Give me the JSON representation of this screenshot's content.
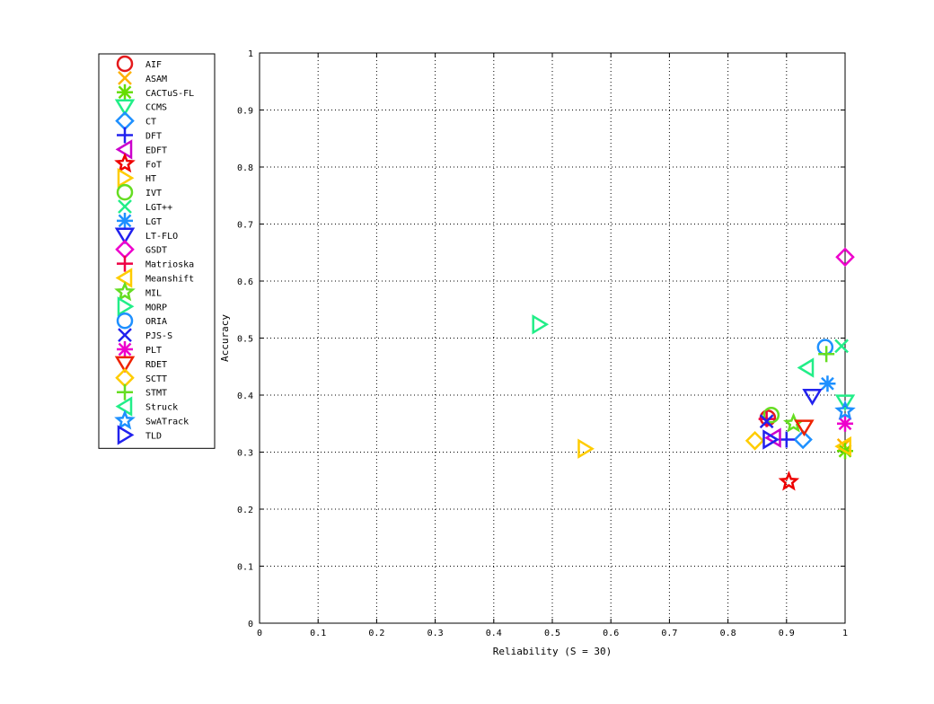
{
  "chart_data": {
    "type": "scatter",
    "xlabel": "Reliability (S = 30)",
    "ylabel": "Accuracy",
    "xlim": [
      0,
      1
    ],
    "ylim": [
      0,
      1
    ],
    "x_ticks": [
      "0",
      "0.1",
      "0.2",
      "0.3",
      "0.4",
      "0.5",
      "0.6",
      "0.7",
      "0.8",
      "0.9",
      "1"
    ],
    "y_ticks": [
      "0",
      "0.1",
      "0.2",
      "0.3",
      "0.4",
      "0.5",
      "0.6",
      "0.7",
      "0.8",
      "0.9",
      "1"
    ],
    "grid": true,
    "legend_position": "left-outside",
    "series": [
      {
        "name": "AIF",
        "marker": "circle",
        "color": "#e41a1c",
        "x": 0.868,
        "y": 0.36
      },
      {
        "name": "ASAM",
        "marker": "x",
        "color": "#ffb000",
        "x": 0.998,
        "y": 0.312
      },
      {
        "name": "CACTuS-FL",
        "marker": "star",
        "color": "#66dd00",
        "x": 1.0,
        "y": 0.302
      },
      {
        "name": "CCMS",
        "marker": "triangle-down",
        "color": "#22ee88",
        "x": 1.0,
        "y": 0.388
      },
      {
        "name": "CT",
        "marker": "diamond",
        "color": "#1e90ff",
        "x": 0.928,
        "y": 0.322
      },
      {
        "name": "DFT",
        "marker": "plus",
        "color": "#2222ee",
        "x": 0.9,
        "y": 0.322
      },
      {
        "name": "EDFT",
        "marker": "triangle-left",
        "color": "#cc00cc",
        "x": 0.878,
        "y": 0.325
      },
      {
        "name": "FoT",
        "marker": "pentagram",
        "color": "#ee0000",
        "x": 0.904,
        "y": 0.248
      },
      {
        "name": "HT",
        "marker": "triangle-right",
        "color": "#ffcc00",
        "x": 0.556,
        "y": 0.306
      },
      {
        "name": "IVT",
        "marker": "circle",
        "color": "#66dd22",
        "x": 0.874,
        "y": 0.365
      },
      {
        "name": "LGT++",
        "marker": "x",
        "color": "#22ee88",
        "x": 0.994,
        "y": 0.486
      },
      {
        "name": "LGT",
        "marker": "star",
        "color": "#1e90ff",
        "x": 0.97,
        "y": 0.42
      },
      {
        "name": "LT-FLO",
        "marker": "triangle-down",
        "color": "#2222ee",
        "x": 0.944,
        "y": 0.398
      },
      {
        "name": "GSDT",
        "marker": "diamond",
        "color": "#ee00cc",
        "x": 1.0,
        "y": 0.642
      },
      {
        "name": "Matrioska",
        "marker": "plus",
        "color": "#ee0044",
        "x": 0.866,
        "y": 0.358
      },
      {
        "name": "Meanshift",
        "marker": "triangle-left",
        "color": "#ffcc00",
        "x": 0.998,
        "y": 0.31
      },
      {
        "name": "MIL",
        "marker": "pentagram",
        "color": "#66dd22",
        "x": 0.912,
        "y": 0.35
      },
      {
        "name": "MORP",
        "marker": "triangle-right",
        "color": "#22ee88",
        "x": 0.478,
        "y": 0.524
      },
      {
        "name": "ORIA",
        "marker": "circle",
        "color": "#1e90ff",
        "x": 0.966,
        "y": 0.484
      },
      {
        "name": "PJS-S",
        "marker": "x",
        "color": "#2222ee",
        "x": 0.866,
        "y": 0.354
      },
      {
        "name": "PLT",
        "marker": "star",
        "color": "#ee00cc",
        "x": 1.0,
        "y": 0.35
      },
      {
        "name": "RDET",
        "marker": "triangle-down",
        "color": "#ee2200",
        "x": 0.93,
        "y": 0.344
      },
      {
        "name": "SCTT",
        "marker": "diamond",
        "color": "#ffcc00",
        "x": 0.846,
        "y": 0.32
      },
      {
        "name": "STMT",
        "marker": "plus",
        "color": "#66dd22",
        "x": 0.968,
        "y": 0.472
      },
      {
        "name": "Struck",
        "marker": "triangle-left",
        "color": "#22ee88",
        "x": 0.934,
        "y": 0.448
      },
      {
        "name": "SwATrack",
        "marker": "pentagram",
        "color": "#1e90ff",
        "x": 1.0,
        "y": 0.372
      },
      {
        "name": "TLD",
        "marker": "triangle-right",
        "color": "#2222ee",
        "x": 0.872,
        "y": 0.322
      }
    ]
  }
}
